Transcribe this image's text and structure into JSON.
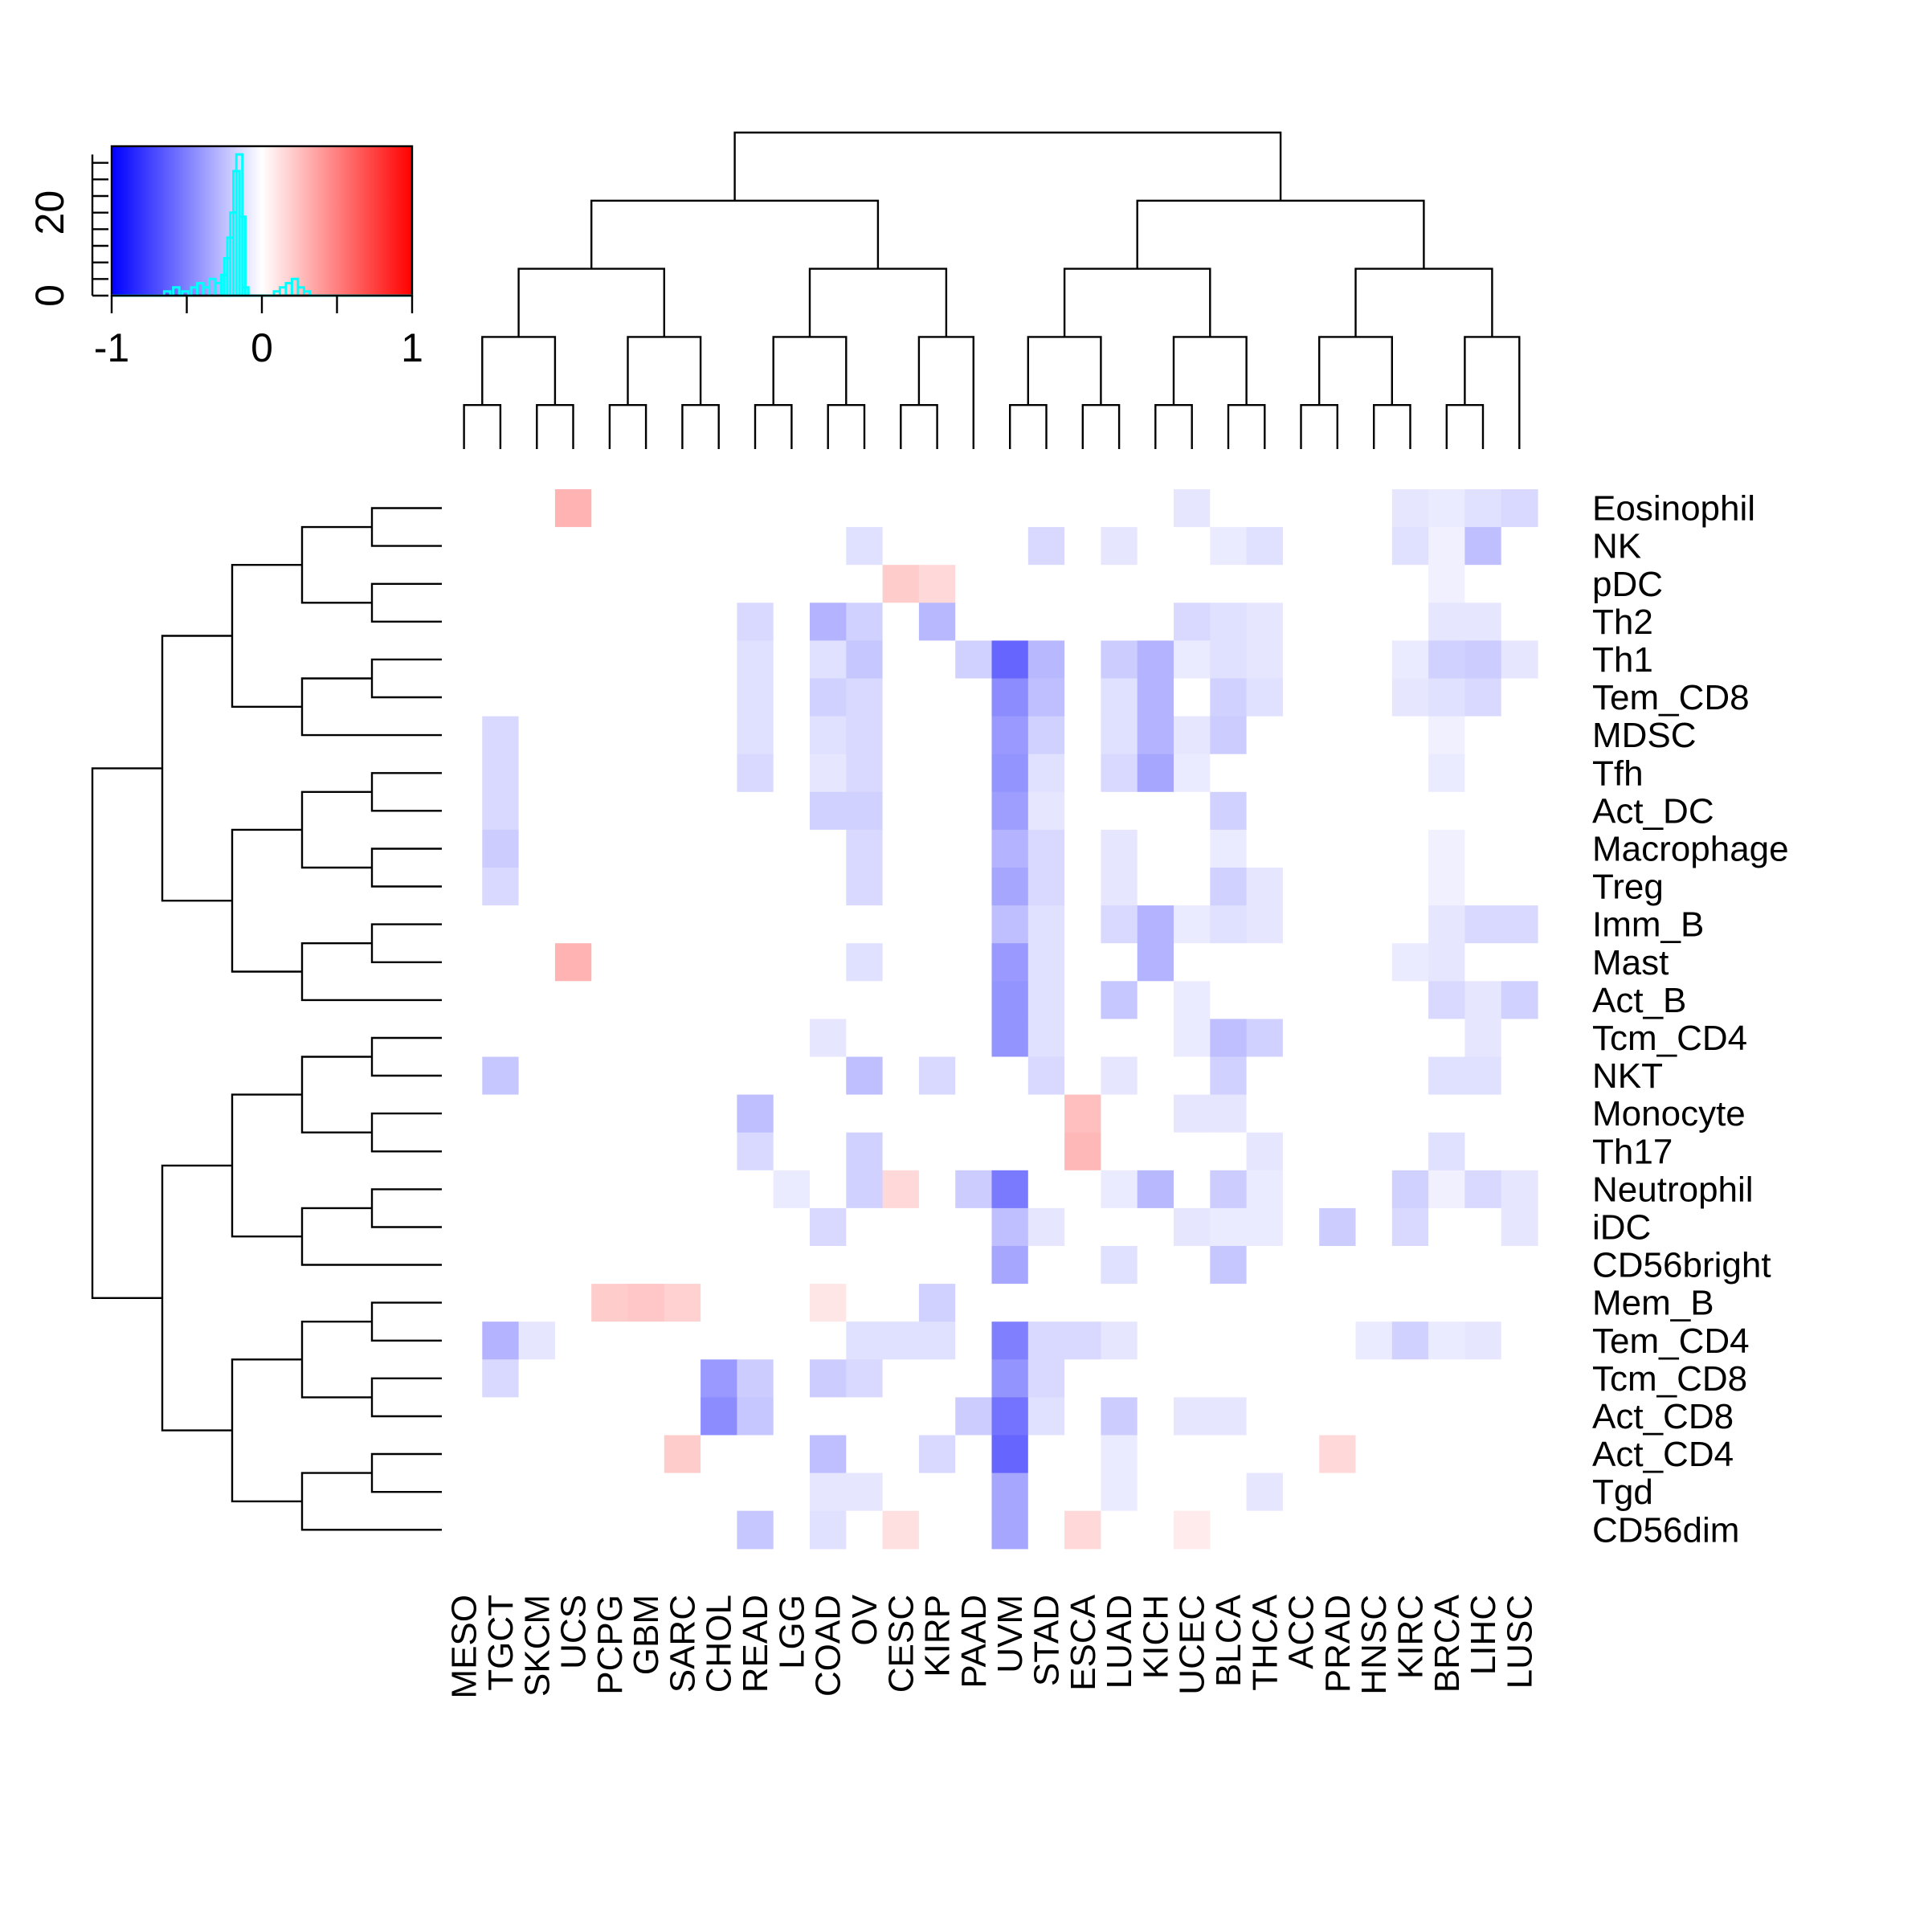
{
  "chart_data": {
    "type": "heatmap",
    "title": "",
    "columns": [
      "MESO",
      "TGCT",
      "SKCM",
      "UCS",
      "PCPG",
      "GBM",
      "SARC",
      "CHOL",
      "READ",
      "LGG",
      "COAD",
      "OV",
      "CESC",
      "KIRP",
      "PAAD",
      "UVM",
      "STAD",
      "ESCA",
      "LUAD",
      "KICH",
      "UCEC",
      "BLCA",
      "THCA",
      "ACC",
      "PRAD",
      "HNSC",
      "KIRC",
      "BRCA",
      "LIHC",
      "LUSC"
    ],
    "rows": [
      "Eosinophil",
      "NK",
      "pDC",
      "Th2",
      "Th1",
      "Tem_CD8",
      "MDSC",
      "Tfh",
      "Act_DC",
      "Macrophage",
      "Treg",
      "Imm_B",
      "Mast",
      "Act_B",
      "Tcm_CD4",
      "NKT",
      "Monocyte",
      "Th17",
      "Neutrophil",
      "iDC",
      "CD56bright",
      "Mem_B",
      "Tem_CD4",
      "Tcm_CD8",
      "Act_CD8",
      "Act_CD4",
      "Tgd",
      "CD56dim"
    ],
    "values": [
      [
        0,
        0,
        0,
        0.3,
        0,
        0,
        0,
        0,
        0,
        0,
        0,
        0,
        0,
        0,
        0,
        0,
        0,
        0,
        0,
        0,
        -0.1,
        0,
        0,
        0,
        0,
        0,
        -0.1,
        -0.08,
        -0.12,
        -0.15
      ],
      [
        0,
        0,
        0,
        0,
        0,
        0,
        0,
        0,
        0,
        0,
        0,
        -0.12,
        0,
        0,
        0,
        0,
        -0.15,
        0,
        -0.1,
        0,
        0,
        -0.08,
        -0.12,
        0,
        0,
        0,
        -0.12,
        -0.06,
        -0.25,
        0
      ],
      [
        0,
        0,
        0,
        0,
        0,
        0,
        0,
        0,
        0,
        0,
        0,
        0,
        0.2,
        0.15,
        0,
        0,
        0,
        0,
        0,
        0,
        0,
        0,
        0,
        0,
        0,
        0,
        0,
        -0.06,
        0,
        0
      ],
      [
        0,
        0,
        0,
        0,
        0,
        0,
        0,
        0,
        -0.15,
        0,
        -0.3,
        -0.18,
        0,
        -0.28,
        0,
        0,
        0,
        0,
        0,
        0,
        -0.15,
        -0.12,
        -0.1,
        0,
        0,
        0,
        0,
        -0.1,
        -0.1,
        0
      ],
      [
        0,
        0,
        0,
        0,
        0,
        0,
        0,
        0,
        -0.12,
        0,
        -0.12,
        -0.22,
        0,
        0,
        -0.18,
        -0.6,
        -0.28,
        0,
        -0.2,
        -0.3,
        -0.08,
        -0.12,
        -0.1,
        0,
        0,
        0,
        -0.08,
        -0.18,
        -0.2,
        -0.1
      ],
      [
        0,
        0,
        0,
        0,
        0,
        0,
        0,
        0,
        -0.12,
        0,
        -0.18,
        -0.15,
        0,
        0,
        0,
        -0.45,
        -0.25,
        0,
        -0.12,
        -0.3,
        0,
        -0.18,
        -0.12,
        0,
        0,
        0,
        -0.1,
        -0.12,
        -0.15,
        0
      ],
      [
        0,
        -0.15,
        0,
        0,
        0,
        0,
        0,
        0,
        -0.12,
        0,
        -0.12,
        -0.15,
        0,
        0,
        0,
        -0.4,
        -0.18,
        0,
        -0.12,
        -0.3,
        -0.1,
        -0.2,
        0,
        0,
        0,
        0,
        0,
        -0.06,
        0,
        0
      ],
      [
        0,
        -0.15,
        0,
        0,
        0,
        0,
        0,
        0,
        -0.15,
        0,
        -0.1,
        -0.15,
        0,
        0,
        0,
        -0.42,
        -0.12,
        0,
        -0.15,
        -0.35,
        -0.08,
        0,
        0,
        0,
        0,
        0,
        0,
        -0.08,
        0,
        0
      ],
      [
        0,
        -0.15,
        0,
        0,
        0,
        0,
        0,
        0,
        0,
        0,
        -0.18,
        -0.18,
        0,
        0,
        0,
        -0.38,
        -0.1,
        0,
        0,
        0,
        0,
        -0.18,
        0,
        0,
        0,
        0,
        0,
        0,
        0,
        0
      ],
      [
        0,
        -0.2,
        0,
        0,
        0,
        0,
        0,
        0,
        0,
        0,
        0,
        -0.15,
        0,
        0,
        0,
        -0.3,
        -0.15,
        0,
        -0.1,
        0,
        0,
        -0.08,
        0,
        0,
        0,
        0,
        0,
        -0.06,
        0,
        0
      ],
      [
        0,
        -0.15,
        0,
        0,
        0,
        0,
        0,
        0,
        0,
        0,
        0,
        -0.15,
        0,
        0,
        0,
        -0.35,
        -0.15,
        0,
        -0.1,
        0,
        0,
        -0.18,
        -0.1,
        0,
        0,
        0,
        0,
        -0.06,
        0,
        0
      ],
      [
        0,
        0,
        0,
        0,
        0,
        0,
        0,
        0,
        0,
        0,
        0,
        0,
        0,
        0,
        0,
        -0.25,
        -0.12,
        0,
        -0.15,
        -0.3,
        -0.08,
        -0.12,
        -0.1,
        0,
        0,
        0,
        0,
        -0.1,
        -0.15,
        -0.15
      ],
      [
        0,
        0,
        0,
        0.3,
        0,
        0,
        0,
        0,
        0,
        0,
        0,
        -0.12,
        0,
        0,
        0,
        -0.4,
        -0.12,
        0,
        0,
        -0.3,
        0,
        0,
        0,
        0,
        0,
        0,
        -0.08,
        -0.1,
        0,
        0
      ],
      [
        0,
        0,
        0,
        0,
        0,
        0,
        0,
        0,
        0,
        0,
        0,
        0,
        0,
        0,
        0,
        -0.42,
        -0.12,
        0,
        -0.22,
        0,
        -0.08,
        0,
        0,
        0,
        0,
        0,
        0,
        -0.15,
        -0.1,
        -0.18
      ],
      [
        0,
        0,
        0,
        0,
        0,
        0,
        0,
        0,
        0,
        0,
        -0.1,
        0,
        0,
        0,
        0,
        -0.42,
        -0.12,
        0,
        0,
        0,
        -0.08,
        -0.25,
        -0.18,
        0,
        0,
        0,
        0,
        0,
        -0.1,
        0
      ],
      [
        0,
        -0.22,
        0,
        0,
        0,
        0,
        0,
        0,
        0,
        0,
        0,
        -0.25,
        0,
        -0.15,
        0,
        0,
        -0.15,
        0,
        -0.1,
        0,
        0,
        -0.18,
        0,
        0,
        0,
        0,
        0,
        -0.12,
        -0.12,
        0
      ],
      [
        0,
        0,
        0,
        0,
        0,
        0,
        0,
        0,
        -0.25,
        0,
        0,
        0,
        0,
        0,
        0,
        0,
        0,
        0.25,
        0,
        0,
        -0.1,
        -0.1,
        0,
        0,
        0,
        0,
        0,
        0,
        0,
        0
      ],
      [
        0,
        0,
        0,
        0,
        0,
        0,
        0,
        0,
        -0.15,
        0,
        0,
        -0.18,
        0,
        0,
        0,
        0,
        0,
        0.28,
        0,
        0,
        0,
        0,
        -0.1,
        0,
        0,
        0,
        0,
        -0.12,
        0,
        0
      ],
      [
        0,
        0,
        0,
        0,
        0,
        0,
        0,
        0,
        0,
        -0.08,
        0,
        -0.18,
        0.15,
        0,
        -0.2,
        -0.52,
        0,
        0,
        -0.08,
        -0.28,
        0,
        -0.2,
        -0.08,
        0,
        0,
        0,
        -0.18,
        -0.06,
        -0.15,
        -0.1
      ],
      [
        0,
        0,
        0,
        0,
        0,
        0,
        0,
        0,
        0,
        0,
        -0.15,
        0,
        0,
        0,
        0,
        -0.25,
        -0.1,
        0,
        0,
        0,
        -0.1,
        -0.08,
        -0.08,
        0,
        -0.2,
        0,
        -0.15,
        0,
        0,
        -0.1
      ],
      [
        0,
        0,
        0,
        0,
        0,
        0,
        0,
        0,
        0,
        0,
        0,
        0,
        0,
        0,
        0,
        -0.35,
        0,
        0,
        -0.12,
        0,
        0,
        -0.22,
        0,
        0,
        0,
        0,
        0,
        0,
        0,
        0
      ],
      [
        0,
        0,
        0,
        0,
        0.2,
        0.22,
        0.18,
        0,
        0,
        0,
        0.1,
        0,
        0,
        -0.18,
        0,
        0,
        0,
        0,
        0,
        0,
        0,
        0,
        0,
        0,
        0,
        0,
        0,
        0,
        0,
        0
      ],
      [
        0,
        -0.3,
        -0.1,
        0,
        0,
        0,
        0,
        0,
        0,
        0,
        0,
        -0.12,
        -0.12,
        -0.12,
        0,
        -0.5,
        -0.15,
        -0.15,
        -0.1,
        0,
        0,
        0,
        0,
        0,
        0,
        -0.08,
        -0.18,
        -0.08,
        -0.1,
        0
      ],
      [
        0,
        -0.15,
        0,
        0,
        0,
        0,
        0,
        -0.4,
        -0.2,
        0,
        -0.2,
        -0.15,
        0,
        0,
        0,
        -0.42,
        -0.15,
        0,
        0,
        0,
        0,
        0,
        0,
        0,
        0,
        0,
        0,
        0,
        0,
        0
      ],
      [
        0,
        0,
        0,
        0,
        0,
        0,
        0,
        -0.45,
        -0.22,
        0,
        0,
        0,
        0,
        0,
        -0.2,
        -0.55,
        -0.12,
        0,
        -0.2,
        0,
        -0.1,
        -0.1,
        0,
        0,
        0,
        0,
        0,
        0,
        0,
        0
      ],
      [
        0,
        0,
        0,
        0,
        0,
        0,
        0.2,
        0,
        0,
        0,
        -0.25,
        0,
        0,
        -0.15,
        0,
        -0.6,
        0,
        0,
        -0.08,
        0,
        0,
        0,
        0,
        0,
        0.15,
        0,
        0,
        0,
        0,
        0
      ],
      [
        0,
        0,
        0,
        0,
        0,
        0,
        0,
        0,
        0,
        0,
        -0.1,
        -0.1,
        0,
        0,
        0,
        -0.35,
        0,
        0,
        -0.08,
        0,
        0,
        0,
        -0.1,
        0,
        0,
        0,
        0,
        0,
        0,
        0
      ],
      [
        0,
        0,
        0,
        0,
        0,
        0,
        0,
        0,
        -0.22,
        0,
        -0.12,
        0,
        0.12,
        0,
        0,
        -0.35,
        0,
        0.15,
        0,
        0,
        0.08,
        0,
        0,
        0,
        0,
        0,
        0,
        0,
        0,
        0
      ]
    ],
    "color_key": {
      "range": [
        -1,
        1
      ],
      "low_color": "#0000ff",
      "mid_color": "#ffffff",
      "high_color": "#ff0000",
      "hist_color": "#00ffff",
      "x_ticks": [
        "-1",
        "0",
        "1"
      ],
      "y_ticks": [
        "0",
        "20"
      ],
      "y_max": 36
    },
    "histogram": [
      {
        "v": -0.63,
        "c": 1
      },
      {
        "v": -0.57,
        "c": 2
      },
      {
        "v": -0.51,
        "c": 1
      },
      {
        "v": -0.45,
        "c": 2
      },
      {
        "v": -0.41,
        "c": 3
      },
      {
        "v": -0.37,
        "c": 2
      },
      {
        "v": -0.33,
        "c": 4
      },
      {
        "v": -0.29,
        "c": 3
      },
      {
        "v": -0.25,
        "c": 5
      },
      {
        "v": -0.23,
        "c": 9
      },
      {
        "v": -0.21,
        "c": 14
      },
      {
        "v": -0.19,
        "c": 20
      },
      {
        "v": -0.17,
        "c": 30
      },
      {
        "v": -0.15,
        "c": 34
      },
      {
        "v": -0.13,
        "c": 19
      },
      {
        "v": -0.11,
        "c": 2
      },
      {
        "v": 0.1,
        "c": 1
      },
      {
        "v": 0.14,
        "c": 2
      },
      {
        "v": 0.18,
        "c": 3
      },
      {
        "v": 0.22,
        "c": 4
      },
      {
        "v": 0.26,
        "c": 2
      },
      {
        "v": 0.3,
        "c": 1
      }
    ],
    "row_dendrogram_order": [
      3,
      2,
      0,
      1,
      4,
      5,
      6,
      7,
      8,
      9,
      10,
      11,
      12,
      13,
      14,
      15,
      16,
      17,
      18,
      19,
      20,
      21,
      22,
      23,
      24,
      25,
      26,
      27
    ],
    "col_dendrogram_order": [
      0,
      1,
      2,
      3,
      4,
      5,
      6,
      7,
      8,
      9,
      10,
      11,
      12,
      13,
      14,
      15,
      16,
      17,
      18,
      19,
      20,
      21,
      22,
      23,
      24,
      25,
      26,
      27,
      28,
      29
    ]
  }
}
